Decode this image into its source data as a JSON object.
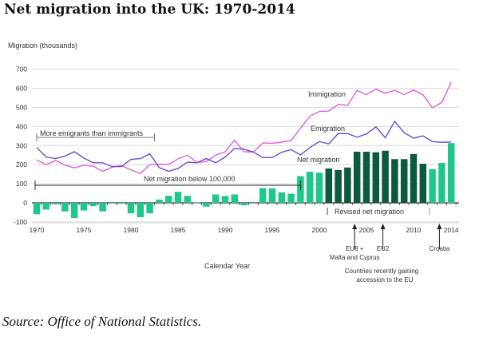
{
  "page": {
    "title": "Net migration into the UK: 1970-2014",
    "source": "Source: Office of National Statistics."
  },
  "chart_data": {
    "type": "bar",
    "title": "Net migration into the UK: 1970-2014",
    "ylabel": "Migration (thousands)",
    "xlabel": "Calendar Year",
    "ylim": [
      -100,
      700
    ],
    "yticks": [
      -100,
      0,
      100,
      200,
      300,
      400,
      500,
      600,
      700
    ],
    "xticks": [
      1970,
      1975,
      1980,
      1985,
      1990,
      1995,
      2000,
      2005,
      2010,
      2014
    ],
    "grid": true,
    "x": [
      1970,
      1971,
      1972,
      1973,
      1974,
      1975,
      1976,
      1977,
      1978,
      1979,
      1980,
      1981,
      1982,
      1983,
      1984,
      1985,
      1986,
      1987,
      1988,
      1989,
      1990,
      1991,
      1992,
      1993,
      1994,
      1995,
      1996,
      1997,
      1998,
      1999,
      2000,
      2001,
      2002,
      2003,
      2004,
      2005,
      2006,
      2007,
      2008,
      2009,
      2010,
      2011,
      2012,
      2013,
      2014
    ],
    "series": [
      {
        "name": "Net migration",
        "kind": "bar",
        "values": [
          -60,
          -35,
          -8,
          -45,
          -80,
          -40,
          -17,
          -45,
          -2,
          5,
          -55,
          -75,
          -55,
          17,
          37,
          58,
          37,
          2,
          -20,
          44,
          36,
          44,
          -13,
          -1,
          77,
          76,
          55,
          48,
          140,
          163,
          158,
          180,
          172,
          185,
          268,
          268,
          265,
          273,
          229,
          229,
          256,
          205,
          177,
          209,
          313
        ],
        "revised_years": [
          2001,
          2002,
          2003,
          2004,
          2005,
          2006,
          2007,
          2008,
          2009,
          2010,
          2011
        ],
        "color_standard": "#1fc88a",
        "color_revised": "#0b5a3b"
      },
      {
        "name": "Immigration",
        "kind": "line",
        "color": "#e25fdc",
        "values": [
          225,
          200,
          222,
          198,
          183,
          197,
          192,
          165,
          187,
          195,
          173,
          153,
          201,
          202,
          201,
          230,
          250,
          211,
          216,
          250,
          267,
          329,
          268,
          266,
          314,
          312,
          318,
          327,
          391,
          454,
          479,
          481,
          516,
          511,
          589,
          567,
          596,
          574,
          590,
          567,
          591,
          566,
          498,
          526,
          632
        ]
      },
      {
        "name": "Emigration",
        "kind": "line",
        "color": "#6a4fd2",
        "values": [
          290,
          240,
          232,
          245,
          268,
          235,
          210,
          210,
          190,
          190,
          228,
          232,
          257,
          185,
          165,
          180,
          213,
          210,
          232,
          210,
          240,
          285,
          281,
          266,
          237,
          237,
          265,
          279,
          251,
          290,
          321,
          309,
          363,
          363,
          344,
          361,
          398,
          341,
          427,
          368,
          339,
          351,
          321,
          317,
          319
        ]
      }
    ],
    "annotations": {
      "more_emigrants": {
        "text": "More emigrants than immigrants",
        "from": 1970,
        "to": 1983
      },
      "below_100k": {
        "text": "Net migration below 100,000",
        "from": 1970,
        "to": 1997
      },
      "revised": {
        "text": "Revised net migration",
        "from": 2001,
        "to": 2011
      },
      "immigration_label": "Immigration",
      "emigration_label": "Emigration",
      "net_label": "Net migration",
      "accession_title_1": "Countries recently gaining",
      "accession_title_2": "accession to the EU",
      "arrows": [
        {
          "year": 2004,
          "label_1": "EU8 +",
          "label_2": "Malta and Cyprus"
        },
        {
          "year": 2007,
          "label_1": "EU2",
          "label_2": ""
        },
        {
          "year": 2013,
          "label_1": "Croatia",
          "label_2": ""
        }
      ]
    }
  }
}
